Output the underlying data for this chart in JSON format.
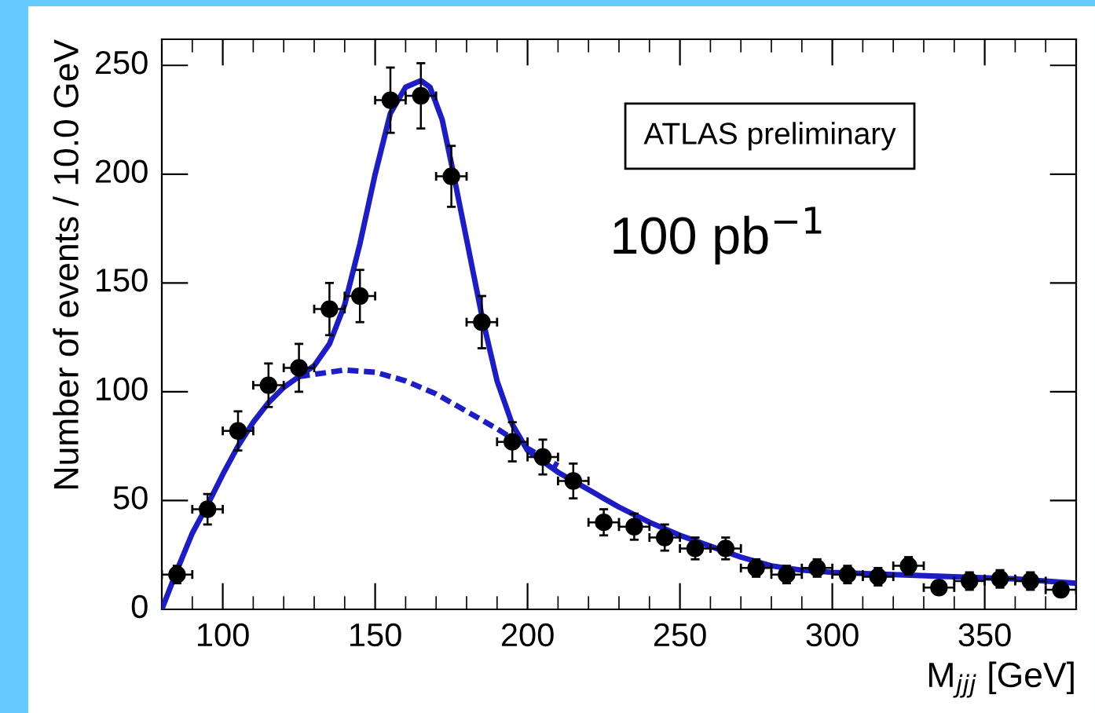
{
  "chart_data": {
    "type": "scatter",
    "xlabel": "M$_{jjj}$ [GeV]",
    "ylabel": "Number of events / 10.0 GeV",
    "xlim": [
      80,
      380
    ],
    "xticks": [
      100,
      150,
      200,
      250,
      300,
      350
    ],
    "ylim": [
      0,
      262
    ],
    "yticks": [
      0,
      50,
      100,
      150,
      200,
      250
    ],
    "grid": false,
    "legend": false,
    "annotations": [
      "ATLAS preliminary",
      "100 pb$^{−1}$"
    ],
    "series": [
      {
        "marker": "circle",
        "color": "#000000",
        "x": [
          85,
          95,
          105,
          115,
          125,
          135,
          145,
          155,
          165,
          175,
          185,
          195,
          205,
          215,
          225,
          235,
          245,
          255,
          265,
          275,
          285,
          295,
          305,
          315,
          325,
          335,
          345,
          355,
          365,
          375
        ],
        "values": [
          16,
          46,
          82,
          103,
          111,
          138,
          144,
          234,
          236,
          199,
          132,
          77,
          70,
          59,
          40,
          38,
          33,
          28,
          28,
          19,
          16,
          19,
          16,
          15,
          20,
          10,
          13,
          14,
          13,
          9
        ],
        "errors": [
          4,
          7,
          9,
          10,
          11,
          12,
          12,
          15,
          15,
          14,
          12,
          9,
          8,
          8,
          6,
          6,
          6,
          5,
          5,
          4,
          4,
          4,
          4,
          4,
          4,
          3,
          4,
          4,
          4,
          3
        ],
        "xerrors": [
          5,
          5,
          5,
          5,
          5,
          5,
          5,
          5,
          5,
          5,
          5,
          5,
          5,
          5,
          5,
          5,
          5,
          5,
          5,
          5,
          5,
          5,
          5,
          5,
          5,
          5,
          5,
          5,
          5,
          5
        ]
      },
      {
        "type": "line",
        "color": "#1c1cc8",
        "line_style": "solid",
        "x": [
          80,
          85,
          90,
          95,
          100,
          105,
          110,
          115,
          120,
          125,
          130,
          135,
          140,
          145,
          150,
          155,
          160,
          165,
          168,
          172,
          175,
          180,
          185,
          190,
          195,
          200,
          210,
          220,
          230,
          240,
          250,
          260,
          270,
          280,
          290,
          300,
          320,
          340,
          360,
          380
        ],
        "values": [
          0,
          18,
          35,
          48,
          62,
          75,
          86,
          95,
          102,
          107,
          112,
          122,
          140,
          168,
          200,
          228,
          240,
          243,
          240,
          225,
          205,
          170,
          135,
          105,
          85,
          73,
          63,
          55,
          47,
          40,
          34,
          29,
          24,
          20,
          18,
          17,
          16,
          15,
          14,
          12
        ]
      },
      {
        "type": "line",
        "color": "#1c1cc8",
        "line_style": "dashed",
        "x": [
          125,
          130,
          140,
          150,
          160,
          170,
          180,
          190,
          200,
          210
        ],
        "values": [
          107,
          108,
          110,
          109,
          105,
          99,
          91,
          83,
          74,
          66
        ]
      }
    ]
  }
}
